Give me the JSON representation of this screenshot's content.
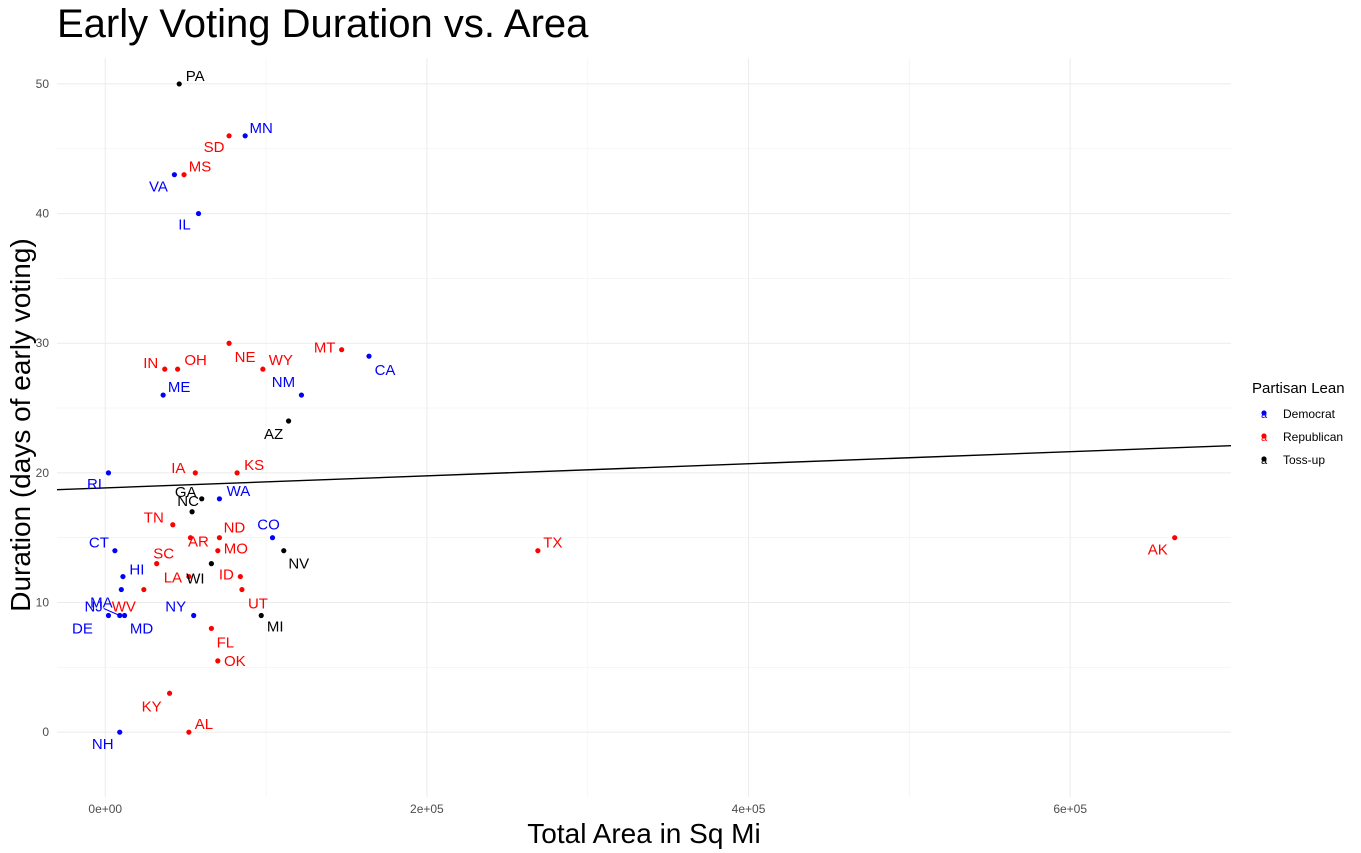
{
  "chart_data": {
    "type": "scatter",
    "title": "Early Voting Duration vs. Area",
    "xlabel": "Total Area in Sq Mi",
    "ylabel": "Duration (days of early voting)",
    "xlim": [
      -30000,
      700000
    ],
    "ylim": [
      -5,
      52
    ],
    "x_ticks": [
      0,
      200000,
      400000,
      600000
    ],
    "x_tick_labels": [
      "0e+00",
      "2e+05",
      "4e+05",
      "6e+05"
    ],
    "y_ticks": [
      0,
      10,
      20,
      30,
      40,
      50
    ],
    "y_tick_labels": [
      "0",
      "10",
      "20",
      "30",
      "40",
      "50"
    ],
    "grid": true,
    "trend_line": {
      "x": [
        -30000,
        700000
      ],
      "y": [
        18.7,
        22.1
      ]
    },
    "legend": {
      "title": "Partisan Lean",
      "placement": "right",
      "entries": [
        {
          "name": "Democrat",
          "color": "#0000ff"
        },
        {
          "name": "Republican",
          "color": "#ff0000"
        },
        {
          "name": "Toss-up",
          "color": "#000000"
        }
      ]
    },
    "points": [
      {
        "label": "PA",
        "x": 46000,
        "y": 50,
        "lean": "Toss-up"
      },
      {
        "label": "MN",
        "x": 87000,
        "y": 46,
        "lean": "Democrat"
      },
      {
        "label": "SD",
        "x": 77000,
        "y": 46,
        "lean": "Republican"
      },
      {
        "label": "VA",
        "x": 43000,
        "y": 43,
        "lean": "Democrat"
      },
      {
        "label": "MS",
        "x": 49000,
        "y": 43,
        "lean": "Republican"
      },
      {
        "label": "IL",
        "x": 58000,
        "y": 40,
        "lean": "Democrat"
      },
      {
        "label": "NE",
        "x": 77000,
        "y": 30,
        "lean": "Republican"
      },
      {
        "label": "MT",
        "x": 147000,
        "y": 29.5,
        "lean": "Republican"
      },
      {
        "label": "CA",
        "x": 164000,
        "y": 29,
        "lean": "Democrat"
      },
      {
        "label": "IN",
        "x": 37000,
        "y": 28,
        "lean": "Republican"
      },
      {
        "label": "OH",
        "x": 45000,
        "y": 28,
        "lean": "Republican"
      },
      {
        "label": "WY",
        "x": 98000,
        "y": 28,
        "lean": "Republican"
      },
      {
        "label": "ME",
        "x": 36000,
        "y": 26,
        "lean": "Democrat"
      },
      {
        "label": "NM",
        "x": 122000,
        "y": 26,
        "lean": "Democrat"
      },
      {
        "label": "AZ",
        "x": 114000,
        "y": 24,
        "lean": "Toss-up"
      },
      {
        "label": "RI",
        "x": 2000,
        "y": 20,
        "lean": "Democrat"
      },
      {
        "label": "IA",
        "x": 56000,
        "y": 20,
        "lean": "Republican"
      },
      {
        "label": "KS",
        "x": 82000,
        "y": 20,
        "lean": "Republican"
      },
      {
        "label": "GA",
        "x": 60000,
        "y": 18,
        "lean": "Toss-up"
      },
      {
        "label": "WA",
        "x": 71000,
        "y": 18,
        "lean": "Democrat"
      },
      {
        "label": "NC",
        "x": 54000,
        "y": 17,
        "lean": "Toss-up"
      },
      {
        "label": "TN",
        "x": 42000,
        "y": 16,
        "lean": "Republican"
      },
      {
        "label": "AR",
        "x": 53000,
        "y": 15,
        "lean": "Republican"
      },
      {
        "label": "ND",
        "x": 71000,
        "y": 15,
        "lean": "Republican"
      },
      {
        "label": "CO",
        "x": 104000,
        "y": 15,
        "lean": "Democrat"
      },
      {
        "label": "AK",
        "x": 665000,
        "y": 15,
        "lean": "Republican"
      },
      {
        "label": "CT",
        "x": 6000,
        "y": 14,
        "lean": "Democrat"
      },
      {
        "label": "MO",
        "x": 70000,
        "y": 14,
        "lean": "Republican"
      },
      {
        "label": "NV",
        "x": 111000,
        "y": 14,
        "lean": "Toss-up"
      },
      {
        "label": "TX",
        "x": 269000,
        "y": 14,
        "lean": "Republican"
      },
      {
        "label": "SC",
        "x": 32000,
        "y": 13,
        "lean": "Republican"
      },
      {
        "label": "WI",
        "x": 66000,
        "y": 13,
        "lean": "Toss-up"
      },
      {
        "label": "HI",
        "x": 11000,
        "y": 12,
        "lean": "Democrat"
      },
      {
        "label": "LA",
        "x": 52000,
        "y": 12,
        "lean": "Republican"
      },
      {
        "label": "ID",
        "x": 84000,
        "y": 12,
        "lean": "Republican"
      },
      {
        "label": "MA",
        "x": 10000,
        "y": 11,
        "lean": "Democrat"
      },
      {
        "label": "WV",
        "x": 24000,
        "y": 11,
        "lean": "Republican"
      },
      {
        "label": "UT",
        "x": 85000,
        "y": 11,
        "lean": "Republican"
      },
      {
        "label": "NJ",
        "x": 9000,
        "y": 9,
        "lean": "Democrat"
      },
      {
        "label": "DE",
        "x": 2000,
        "y": 9,
        "lean": "Democrat"
      },
      {
        "label": "MD",
        "x": 12000,
        "y": 9,
        "lean": "Democrat"
      },
      {
        "label": "NY",
        "x": 55000,
        "y": 9,
        "lean": "Democrat"
      },
      {
        "label": "MI",
        "x": 97000,
        "y": 9,
        "lean": "Toss-up"
      },
      {
        "label": "FL",
        "x": 66000,
        "y": 8,
        "lean": "Republican"
      },
      {
        "label": "OK",
        "x": 70000,
        "y": 5.5,
        "lean": "Republican"
      },
      {
        "label": "KY",
        "x": 40000,
        "y": 3,
        "lean": "Republican"
      },
      {
        "label": "NH",
        "x": 9000,
        "y": 0,
        "lean": "Democrat"
      },
      {
        "label": "AL",
        "x": 52000,
        "y": 0,
        "lean": "Republican"
      }
    ]
  }
}
